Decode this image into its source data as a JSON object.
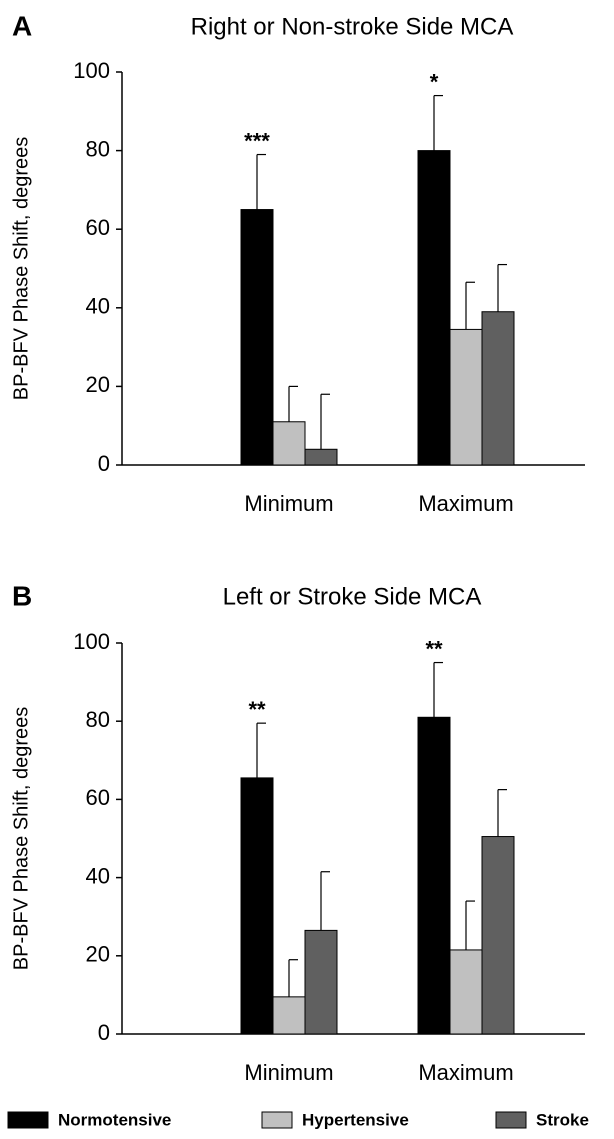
{
  "chart_data": [
    {
      "type": "bar",
      "panel": "A",
      "title": "Right or Non-stroke Side MCA",
      "ylabel": "BP-BFV Phase Shift, degrees",
      "categories": [
        "Minimum",
        "Maximum"
      ],
      "series": [
        {
          "values": [
            65,
            80
          ],
          "errors": [
            14,
            14
          ]
        },
        {
          "values": [
            11,
            34.5
          ],
          "errors": [
            9,
            12
          ]
        },
        {
          "values": [
            4,
            39
          ],
          "errors": [
            14,
            12
          ]
        }
      ],
      "annotations": [
        "***",
        "*"
      ],
      "ylim": [
        0,
        100
      ],
      "yticks": [
        0,
        20,
        40,
        60,
        80,
        100
      ]
    },
    {
      "type": "bar",
      "panel": "B",
      "title": "Left or Stroke Side MCA",
      "ylabel": "BP-BFV Phase Shift, degrees",
      "categories": [
        "Minimum",
        "Maximum"
      ],
      "series": [
        {
          "values": [
            65.5,
            81
          ],
          "errors": [
            14,
            14
          ]
        },
        {
          "values": [
            9.5,
            21.5
          ],
          "errors": [
            9.5,
            12.5
          ]
        },
        {
          "values": [
            26.5,
            50.5
          ],
          "errors": [
            15,
            12
          ]
        }
      ],
      "annotations": [
        "**",
        "**"
      ],
      "ylim": [
        0,
        100
      ],
      "yticks": [
        0,
        20,
        40,
        60,
        80,
        100
      ]
    }
  ],
  "legend": [
    {
      "name": "Normotensive",
      "color": "#000000"
    },
    {
      "name": "Hypertensive",
      "color": "#c0c0c0"
    },
    {
      "name": "Stroke",
      "color": "#606060"
    }
  ]
}
